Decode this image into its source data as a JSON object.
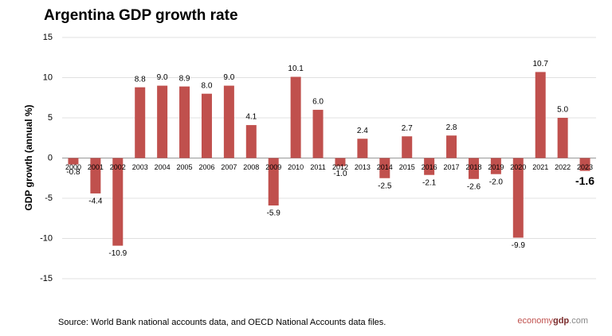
{
  "chart_data": {
    "type": "bar",
    "title": "Argentina GDP growth rate",
    "y_label": "GDP growth (annual %)",
    "categories": [
      "2000",
      "2001",
      "2002",
      "2003",
      "2004",
      "2005",
      "2006",
      "2007",
      "2008",
      "2009",
      "2010",
      "2011",
      "2012",
      "2013",
      "2014",
      "2015",
      "2016",
      "2017",
      "2018",
      "2019",
      "2020",
      "2021",
      "2022",
      "2023"
    ],
    "values": [
      -0.8,
      -4.4,
      -10.9,
      8.8,
      9.0,
      8.9,
      8.0,
      9.0,
      4.1,
      -5.9,
      10.1,
      6.0,
      -1.0,
      2.4,
      -2.5,
      2.7,
      -2.1,
      2.8,
      -2.6,
      -2.0,
      -9.9,
      10.7,
      5.0,
      -1.6
    ],
    "value_labels": [
      "-0.8",
      "-4.4",
      "-10.9",
      "8.8",
      "9.0",
      "8.9",
      "8.0",
      "9.0",
      "4.1",
      "-5.9",
      "10.1",
      "6.0",
      "-1.0",
      "2.4",
      "-2.5",
      "2.7",
      "-2.1",
      "2.8",
      "-2.6",
      "-2.0",
      "-9.9",
      "10.7",
      "5.0",
      "-1.6"
    ],
    "color": "#c0504d",
    "ylim": [
      -15,
      15
    ],
    "yticks": [
      -15,
      -10,
      -5,
      0,
      5,
      10,
      15
    ],
    "grid": true,
    "source": "Source:  World Bank national accounts data, and OECD National Accounts data files.",
    "brand": [
      "economy",
      "gdp",
      ".com"
    ]
  }
}
